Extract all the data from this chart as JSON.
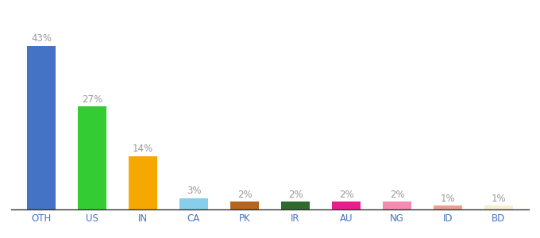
{
  "categories": [
    "OTH",
    "US",
    "IN",
    "CA",
    "PK",
    "IR",
    "AU",
    "NG",
    "ID",
    "BD"
  ],
  "values": [
    43,
    27,
    14,
    3,
    2,
    2,
    2,
    2,
    1,
    1
  ],
  "bar_colors": [
    "#4472c4",
    "#33cc33",
    "#f5a800",
    "#87ceeb",
    "#b5651d",
    "#2d6a2d",
    "#e91e8c",
    "#f48cb1",
    "#e8a090",
    "#f5f0d0"
  ],
  "labels": [
    "43%",
    "27%",
    "14%",
    "3%",
    "2%",
    "2%",
    "2%",
    "2%",
    "1%",
    "1%"
  ],
  "background_color": "#ffffff",
  "label_color": "#999999",
  "label_fontsize": 8.5,
  "tick_fontsize": 8.5,
  "tick_color": "#4472c4",
  "bar_width": 0.55,
  "ylim_max": 50
}
